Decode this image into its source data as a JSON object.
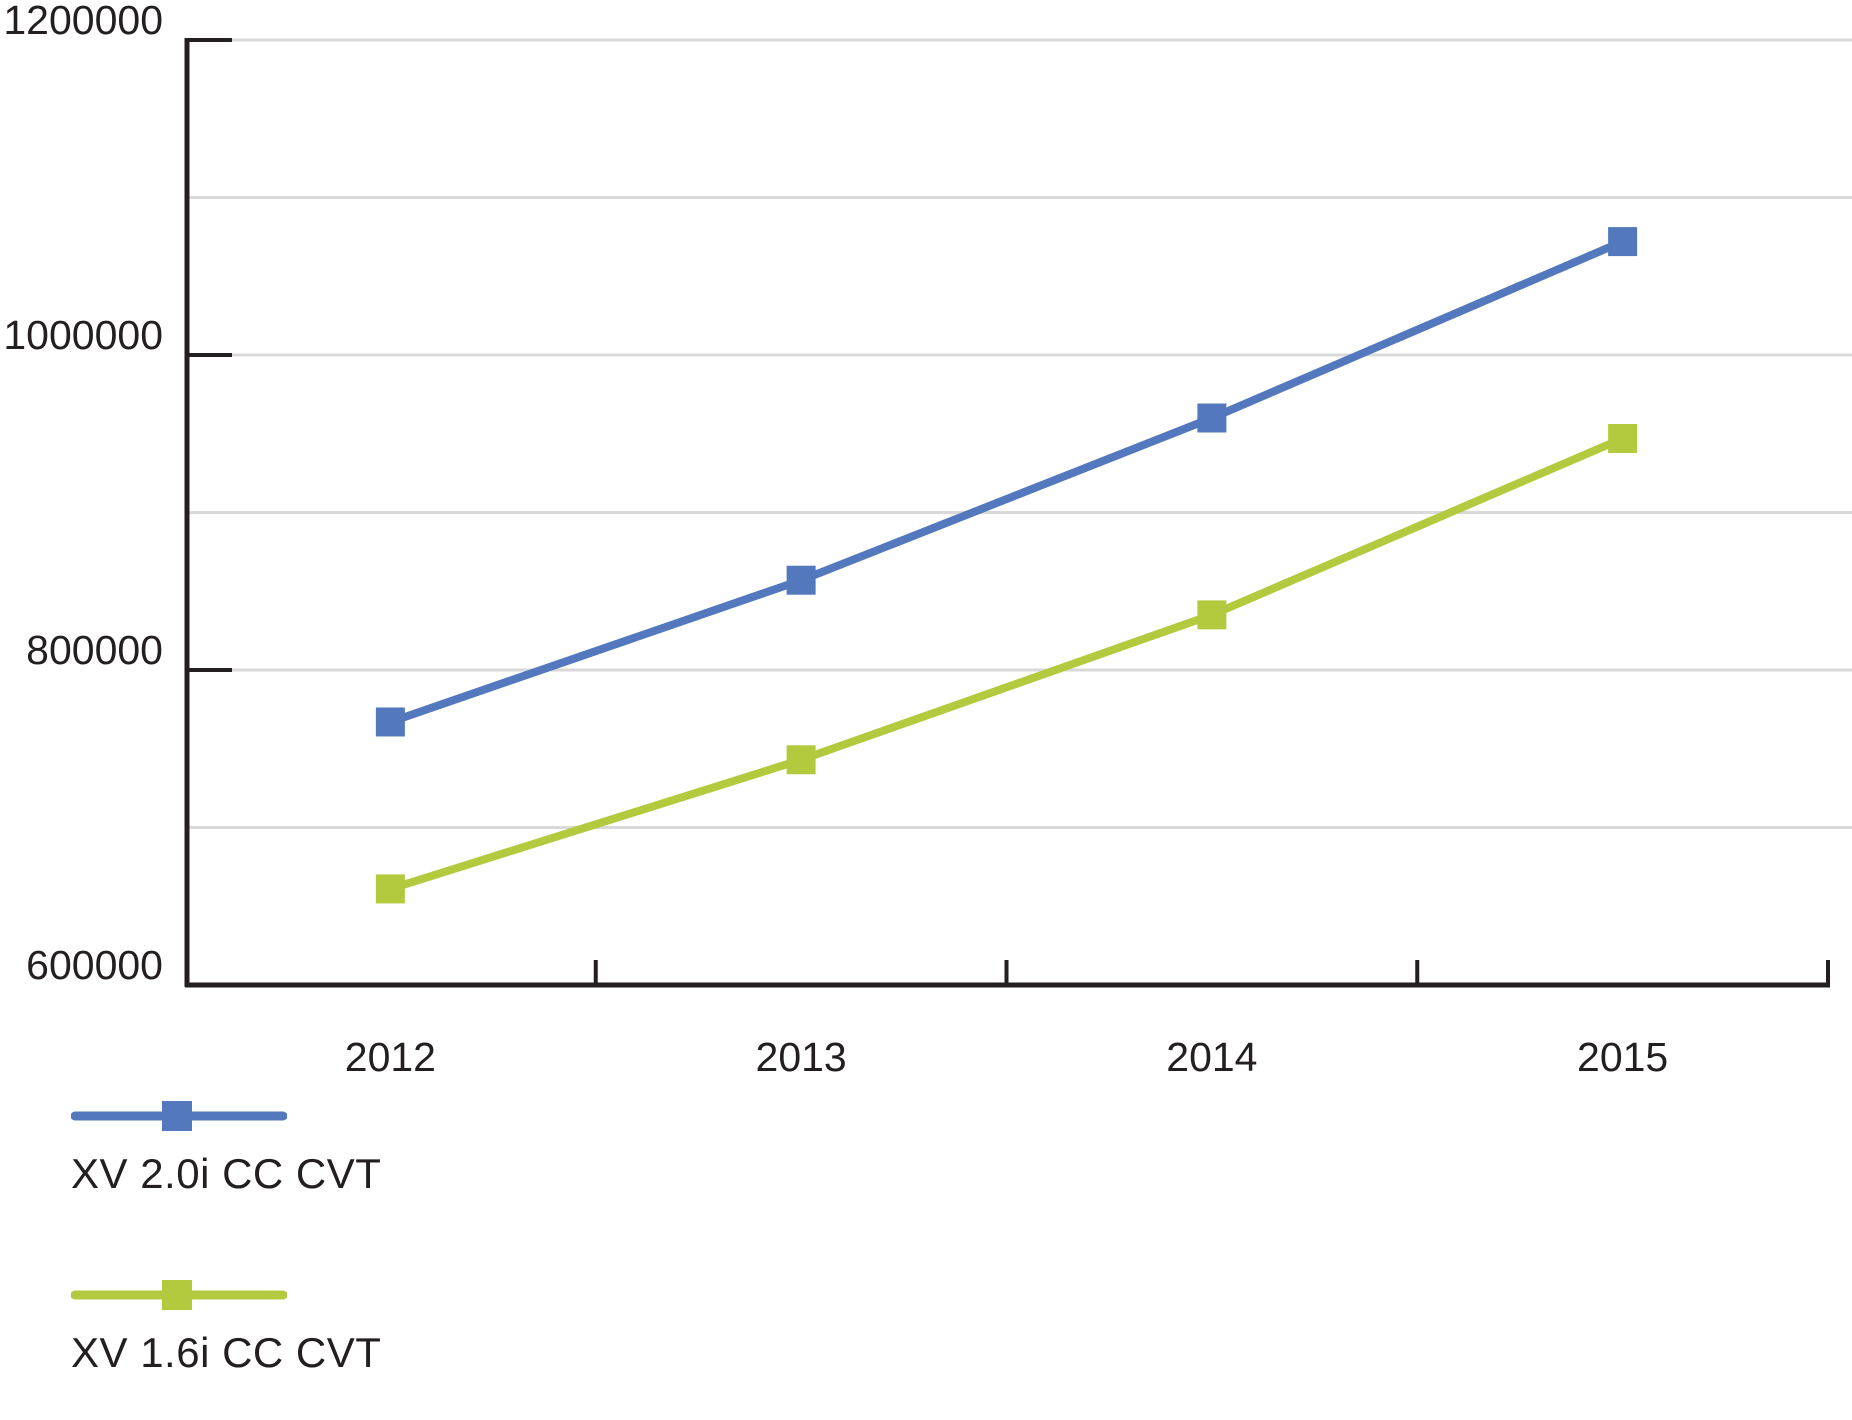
{
  "chart_data": {
    "type": "line",
    "title": "",
    "xlabel": "",
    "ylabel": "",
    "categories": [
      "2012",
      "2013",
      "2014",
      "2015"
    ],
    "series": [
      {
        "name": "XV 2.0i CC CVT",
        "color": "#5378BD",
        "marker": "square",
        "values": [
          767000,
          857000,
          960000,
          1072000
        ]
      },
      {
        "name": "XV 1.6i CC CVT",
        "color": "#B3CA3F",
        "marker": "square",
        "values": [
          661000,
          743000,
          835000,
          947000
        ]
      }
    ],
    "ylim": [
      600000,
      1200000
    ],
    "y_gridline_step": 100000,
    "y_label_step": 200000,
    "y_tick_labels": [
      "600000",
      "800000",
      "1000000",
      "1200000"
    ],
    "grid": "horizontal-only",
    "legend_position": "bottom-left",
    "colors": {
      "axis": "#231F20",
      "tick_text": "#231F20",
      "gridline": "#D9D9D9",
      "background": "#FFFFFF"
    }
  }
}
